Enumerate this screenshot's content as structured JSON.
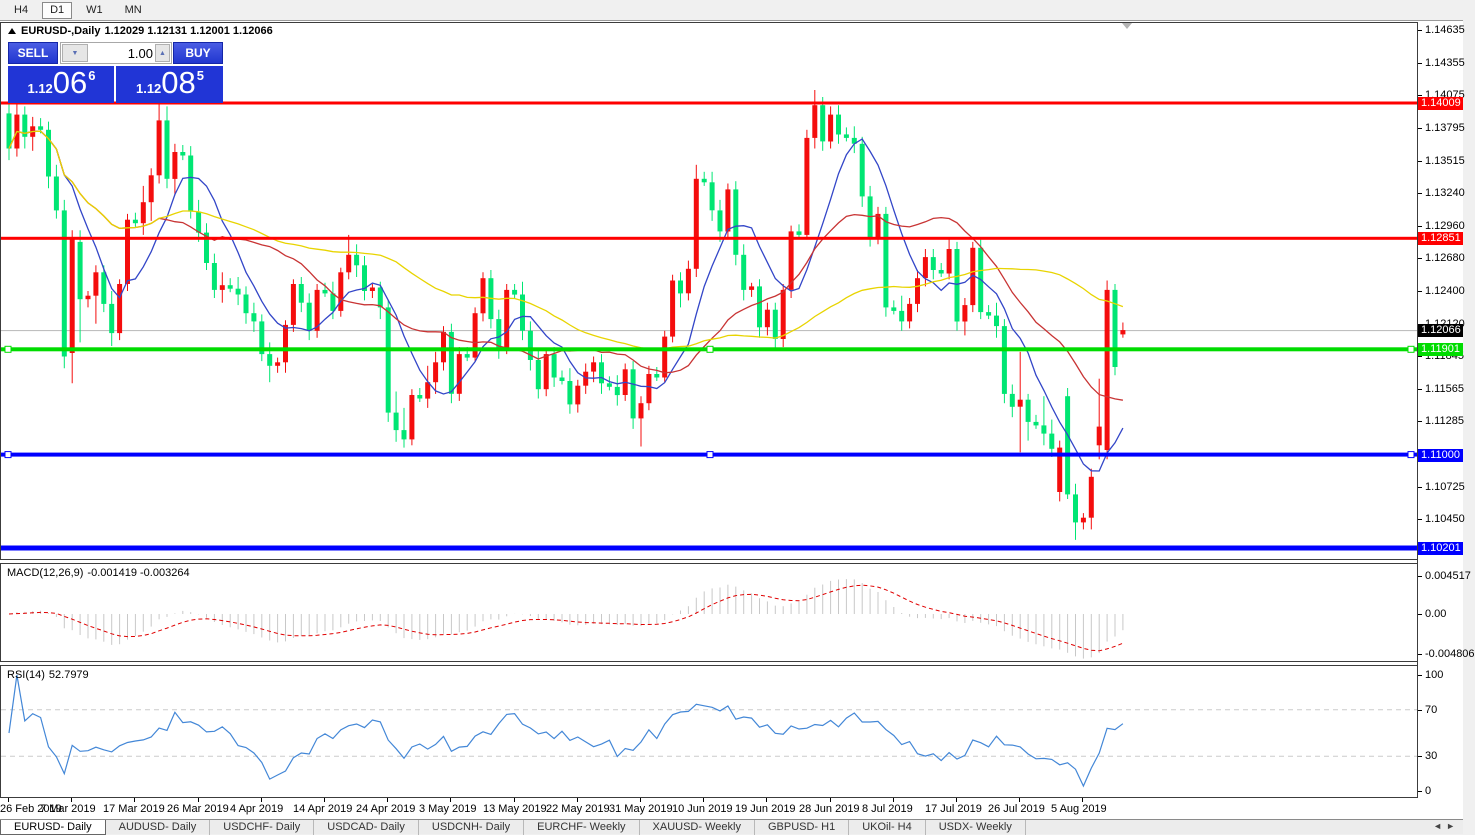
{
  "toolbar": {
    "timeframes": [
      {
        "label": "H4",
        "active": false
      },
      {
        "label": "D1",
        "active": true
      },
      {
        "label": "W1",
        "active": false
      },
      {
        "label": "MN",
        "active": false
      }
    ]
  },
  "chart": {
    "title_symbol": "EURUSD-,Daily",
    "title_ohlc": "1.12029 1.12131 1.12001 1.12066",
    "one_click": {
      "sell_label": "SELL",
      "buy_label": "BUY",
      "volume": "1.00",
      "sell_price": {
        "prefix": "1.12",
        "big": "06",
        "sup": "6"
      },
      "buy_price": {
        "prefix": "1.12",
        "big": "08",
        "sup": "5"
      }
    },
    "colors": {
      "bull": "#f40d0d",
      "bear": "#00e673",
      "ma_fast": "#3346c8",
      "ma_mid": "#c83434",
      "ma_slow": "#e8d400",
      "hline_red": "#ff0000",
      "hline_green": "#00dc00",
      "hline_blue": "#0000ff",
      "current_line": "#b8b8b8",
      "current_tag_bg": "#000000",
      "macd_hist": "#c8c8c8",
      "macd_signal": "#e00000",
      "rsi": "#4387d7"
    }
  },
  "chart_data": {
    "type": "candlestick",
    "symbol": "EURUSD-",
    "timeframe": "Daily",
    "x_labels": [
      "26 Feb 2019",
      "7 Mar 2019",
      "17 Mar 2019",
      "26 Mar 2019",
      "4 Apr 2019",
      "14 Apr 2019",
      "24 Apr 2019",
      "3 May 2019",
      "13 May 2019",
      "22 May 2019",
      "31 May 2019",
      "10 Jun 2019",
      "19 Jun 2019",
      "28 Jun 2019",
      "8 Jul 2019",
      "17 Jul 2019",
      "26 Jul 2019",
      "5 Aug 2019"
    ],
    "price_axis_labels": [
      "1.14635",
      "1.14355",
      "1.14075",
      "1.13795",
      "1.13515",
      "1.13240",
      "1.12960",
      "1.12680",
      "1.12400",
      "1.12120",
      "1.11845",
      "1.11565",
      "1.11285",
      "1.10725",
      "1.10450"
    ],
    "hlines": [
      {
        "price": 1.14009,
        "label": "1.14009",
        "color": "red",
        "width": 3,
        "selected": false
      },
      {
        "price": 1.12851,
        "label": "1.12851",
        "color": "red",
        "width": 3,
        "selected": false
      },
      {
        "price": 1.11901,
        "label": "1.11901",
        "color": "green",
        "width": 4,
        "selected": true
      },
      {
        "price": 1.11,
        "label": "1.11000",
        "color": "blue",
        "width": 4,
        "selected": true
      },
      {
        "price": 1.10201,
        "label": "1.10201",
        "color": "blue",
        "width": 5,
        "selected": false
      }
    ],
    "current_price": {
      "value": 1.12066,
      "label": "1.12066"
    },
    "moving_averages": [
      {
        "period": 8,
        "color_key": "ma_fast"
      },
      {
        "period": 20,
        "color_key": "ma_mid"
      },
      {
        "period": 50,
        "color_key": "ma_slow"
      }
    ],
    "indicators": {
      "macd": {
        "name": "MACD(12,26,9)",
        "values": "-0.001419 -0.003264",
        "fast": 12,
        "slow": 26,
        "signal": 9,
        "axis_labels": [
          {
            "text": "0.004517",
            "value": 0.004517
          },
          {
            "text": "0.00",
            "value": 0
          },
          {
            "text": "-0.004806",
            "value": -0.004806
          }
        ]
      },
      "rsi": {
        "name": "RSI(14)",
        "value": "52.7979",
        "period": 14,
        "levels": [
          70,
          30
        ],
        "axis_labels": [
          {
            "text": "100",
            "value": 100
          },
          {
            "text": "70",
            "value": 70
          },
          {
            "text": "30",
            "value": 30
          },
          {
            "text": "0",
            "value": 0
          }
        ]
      }
    },
    "ohlc": [
      [
        1.1392,
        1.14,
        1.1352,
        1.1362
      ],
      [
        1.1362,
        1.1401,
        1.1355,
        1.1391
      ],
      [
        1.1391,
        1.1398,
        1.1362,
        1.1372
      ],
      [
        1.1372,
        1.1389,
        1.136,
        1.1381
      ],
      [
        1.1381,
        1.1388,
        1.1375,
        1.1378
      ],
      [
        1.1378,
        1.1385,
        1.1328,
        1.1338
      ],
      [
        1.1338,
        1.1348,
        1.1302,
        1.1309
      ],
      [
        1.1309,
        1.1318,
        1.1174,
        1.1184
      ],
      [
        1.1187,
        1.1292,
        1.1161,
        1.1286
      ],
      [
        1.1282,
        1.1292,
        1.1196,
        1.1233
      ],
      [
        1.1233,
        1.124,
        1.1226,
        1.1236
      ],
      [
        1.1236,
        1.1262,
        1.1212,
        1.1256
      ],
      [
        1.1256,
        1.1262,
        1.1222,
        1.1229
      ],
      [
        1.1229,
        1.124,
        1.1193,
        1.1204
      ],
      [
        1.1204,
        1.125,
        1.1198,
        1.1246
      ],
      [
        1.1246,
        1.1306,
        1.124,
        1.1301
      ],
      [
        1.1301,
        1.1307,
        1.1295,
        1.1298
      ],
      [
        1.1298,
        1.133,
        1.1288,
        1.1316
      ],
      [
        1.1316,
        1.1345,
        1.13,
        1.1339
      ],
      [
        1.1339,
        1.14,
        1.1332,
        1.1386
      ],
      [
        1.1386,
        1.1398,
        1.1328,
        1.1336
      ],
      [
        1.1336,
        1.1366,
        1.1322,
        1.1359
      ],
      [
        1.1359,
        1.1365,
        1.1352,
        1.1356
      ],
      [
        1.1356,
        1.1364,
        1.1302,
        1.1308
      ],
      [
        1.1308,
        1.1318,
        1.1282,
        1.129
      ],
      [
        1.129,
        1.1298,
        1.1258,
        1.1264
      ],
      [
        1.1264,
        1.1272,
        1.1234,
        1.1241
      ],
      [
        1.1241,
        1.1256,
        1.123,
        1.1245
      ],
      [
        1.1245,
        1.1251,
        1.1239,
        1.1242
      ],
      [
        1.1242,
        1.1252,
        1.1228,
        1.1237
      ],
      [
        1.1237,
        1.1244,
        1.1212,
        1.1221
      ],
      [
        1.1221,
        1.123,
        1.1205,
        1.1214
      ],
      [
        1.1214,
        1.122,
        1.118,
        1.1186
      ],
      [
        1.1186,
        1.1196,
        1.1162,
        1.1176
      ],
      [
        1.1176,
        1.1183,
        1.117,
        1.1179
      ],
      [
        1.1179,
        1.1215,
        1.117,
        1.1211
      ],
      [
        1.1211,
        1.125,
        1.1205,
        1.1246
      ],
      [
        1.1246,
        1.1252,
        1.1222,
        1.123
      ],
      [
        1.123,
        1.1238,
        1.1198,
        1.1206
      ],
      [
        1.1206,
        1.1246,
        1.12,
        1.1241
      ],
      [
        1.1241,
        1.1247,
        1.1235,
        1.1238
      ],
      [
        1.1238,
        1.1248,
        1.1216,
        1.1223
      ],
      [
        1.1223,
        1.126,
        1.1218,
        1.1256
      ],
      [
        1.1256,
        1.1288,
        1.125,
        1.1271
      ],
      [
        1.1271,
        1.128,
        1.1252,
        1.1262
      ],
      [
        1.1262,
        1.127,
        1.1232,
        1.124
      ],
      [
        1.124,
        1.1246,
        1.1234,
        1.1243
      ],
      [
        1.1243,
        1.1248,
        1.1216,
        1.1226
      ],
      [
        1.1226,
        1.1232,
        1.1128,
        1.1136
      ],
      [
        1.1136,
        1.1154,
        1.1111,
        1.1121
      ],
      [
        1.1121,
        1.114,
        1.1106,
        1.1113
      ],
      [
        1.1113,
        1.1156,
        1.1108,
        1.1151
      ],
      [
        1.1151,
        1.1157,
        1.1145,
        1.1148
      ],
      [
        1.1148,
        1.1176,
        1.114,
        1.1162
      ],
      [
        1.1162,
        1.1188,
        1.1152,
        1.1179
      ],
      [
        1.1179,
        1.121,
        1.1172,
        1.1205
      ],
      [
        1.1205,
        1.1212,
        1.1144,
        1.1152
      ],
      [
        1.1152,
        1.1192,
        1.1146,
        1.1186
      ],
      [
        1.1186,
        1.1192,
        1.118,
        1.1183
      ],
      [
        1.1183,
        1.1226,
        1.118,
        1.1221
      ],
      [
        1.1221,
        1.1256,
        1.1214,
        1.1251
      ],
      [
        1.1251,
        1.1258,
        1.1208,
        1.1216
      ],
      [
        1.1216,
        1.1224,
        1.1182,
        1.1191
      ],
      [
        1.1191,
        1.1246,
        1.1186,
        1.1241
      ],
      [
        1.1241,
        1.1246,
        1.1234,
        1.1237
      ],
      [
        1.1237,
        1.1248,
        1.1198,
        1.1206
      ],
      [
        1.1206,
        1.1214,
        1.1172,
        1.1181
      ],
      [
        1.1181,
        1.119,
        1.1148,
        1.1156
      ],
      [
        1.1156,
        1.119,
        1.115,
        1.1186
      ],
      [
        1.1186,
        1.1192,
        1.1158,
        1.1166
      ],
      [
        1.1166,
        1.1172,
        1.116,
        1.1163
      ],
      [
        1.1163,
        1.1174,
        1.1135,
        1.1143
      ],
      [
        1.1143,
        1.1164,
        1.1136,
        1.1159
      ],
      [
        1.1159,
        1.1178,
        1.1152,
        1.1171
      ],
      [
        1.1171,
        1.1184,
        1.1162,
        1.1179
      ],
      [
        1.1179,
        1.1186,
        1.1152,
        1.1161
      ],
      [
        1.1161,
        1.1167,
        1.1155,
        1.1158
      ],
      [
        1.1158,
        1.1168,
        1.1142,
        1.1151
      ],
      [
        1.1151,
        1.1178,
        1.1146,
        1.1173
      ],
      [
        1.1173,
        1.118,
        1.1122,
        1.1131
      ],
      [
        1.1131,
        1.115,
        1.1107,
        1.1144
      ],
      [
        1.1144,
        1.1176,
        1.1138,
        1.1169
      ],
      [
        1.1169,
        1.1175,
        1.1163,
        1.1166
      ],
      [
        1.1166,
        1.1206,
        1.1162,
        1.1201
      ],
      [
        1.1201,
        1.1254,
        1.1196,
        1.1249
      ],
      [
        1.1249,
        1.1256,
        1.1226,
        1.1238
      ],
      [
        1.1238,
        1.1266,
        1.1232,
        1.1259
      ],
      [
        1.1259,
        1.1348,
        1.1252,
        1.1336
      ],
      [
        1.1336,
        1.1342,
        1.133,
        1.1333
      ],
      [
        1.1333,
        1.1342,
        1.13,
        1.1309
      ],
      [
        1.1309,
        1.1318,
        1.1282,
        1.1291
      ],
      [
        1.1291,
        1.1332,
        1.1284,
        1.1327
      ],
      [
        1.1327,
        1.1334,
        1.1262,
        1.1271
      ],
      [
        1.1271,
        1.128,
        1.1232,
        1.1241
      ],
      [
        1.1241,
        1.1247,
        1.1235,
        1.1244
      ],
      [
        1.1244,
        1.125,
        1.12,
        1.1209
      ],
      [
        1.1209,
        1.123,
        1.1202,
        1.1224
      ],
      [
        1.1224,
        1.123,
        1.119,
        1.1199
      ],
      [
        1.1199,
        1.1246,
        1.1192,
        1.1241
      ],
      [
        1.1241,
        1.1296,
        1.1234,
        1.1291
      ],
      [
        1.1291,
        1.1297,
        1.1285,
        1.1288
      ],
      [
        1.1288,
        1.1378,
        1.1284,
        1.1371
      ],
      [
        1.1371,
        1.1412,
        1.1362,
        1.1399
      ],
      [
        1.1399,
        1.1406,
        1.136,
        1.1368
      ],
      [
        1.1368,
        1.1398,
        1.1362,
        1.1391
      ],
      [
        1.1391,
        1.1399,
        1.1366,
        1.1374
      ],
      [
        1.1374,
        1.138,
        1.1368,
        1.1371
      ],
      [
        1.1371,
        1.1381,
        1.1358,
        1.1366
      ],
      [
        1.1366,
        1.1372,
        1.1312,
        1.1321
      ],
      [
        1.1321,
        1.133,
        1.1278,
        1.1286
      ],
      [
        1.1286,
        1.1312,
        1.128,
        1.1306
      ],
      [
        1.1306,
        1.1312,
        1.1218,
        1.1226
      ],
      [
        1.1226,
        1.1232,
        1.122,
        1.1223
      ],
      [
        1.1223,
        1.1236,
        1.1206,
        1.1214
      ],
      [
        1.1214,
        1.1234,
        1.1208,
        1.1229
      ],
      [
        1.1229,
        1.1258,
        1.1222,
        1.1251
      ],
      [
        1.1251,
        1.1276,
        1.1244,
        1.1269
      ],
      [
        1.1269,
        1.1276,
        1.125,
        1.1258
      ],
      [
        1.1258,
        1.1264,
        1.1252,
        1.1255
      ],
      [
        1.1255,
        1.1286,
        1.125,
        1.1276
      ],
      [
        1.1276,
        1.1282,
        1.1206,
        1.1214
      ],
      [
        1.1214,
        1.1234,
        1.1202,
        1.1228
      ],
      [
        1.1228,
        1.1282,
        1.1222,
        1.1277
      ],
      [
        1.1277,
        1.1284,
        1.1216,
        1.1222
      ],
      [
        1.1222,
        1.1228,
        1.1216,
        1.1219
      ],
      [
        1.1219,
        1.123,
        1.12,
        1.121
      ],
      [
        1.121,
        1.1216,
        1.1144,
        1.1152
      ],
      [
        1.1152,
        1.116,
        1.1132,
        1.1141
      ],
      [
        1.1141,
        1.1188,
        1.1102,
        1.1147
      ],
      [
        1.1147,
        1.1152,
        1.1112,
        1.1128
      ],
      [
        1.1128,
        1.1134,
        1.1122,
        1.1125
      ],
      [
        1.1125,
        1.115,
        1.1108,
        1.1118
      ],
      [
        1.1118,
        1.113,
        1.1098,
        1.1105
      ],
      [
        1.1068,
        1.1112,
        1.106,
        1.1106
      ],
      [
        1.115,
        1.1157,
        1.1062,
        1.1066
      ],
      [
        1.1066,
        1.1075,
        1.1027,
        1.1042
      ],
      [
        1.1042,
        1.105,
        1.1036,
        1.1046
      ],
      [
        1.1046,
        1.1088,
        1.1036,
        1.1081
      ],
      [
        1.1108,
        1.1165,
        1.1096,
        1.1124
      ],
      [
        1.1104,
        1.1249,
        1.1096,
        1.1241
      ],
      [
        1.1241,
        1.1246,
        1.1168,
        1.1175
      ],
      [
        1.12029,
        1.12131,
        1.12001,
        1.12066
      ]
    ]
  },
  "tabs": {
    "items": [
      {
        "label": "EURUSD- Daily",
        "active": true
      },
      {
        "label": "AUDUSD- Daily",
        "active": false
      },
      {
        "label": "USDCHF- Daily",
        "active": false
      },
      {
        "label": "USDCAD- Daily",
        "active": false
      },
      {
        "label": "USDCNH- Daily",
        "active": false
      },
      {
        "label": "EURCHF- Weekly",
        "active": false
      },
      {
        "label": "XAUUSD- Weekly",
        "active": false
      },
      {
        "label": "GBPUSD- H1",
        "active": false
      },
      {
        "label": "UKOil- H4",
        "active": false
      },
      {
        "label": "USDX- Weekly",
        "active": false
      }
    ],
    "nav_left": "◄",
    "nav_right": "►"
  }
}
